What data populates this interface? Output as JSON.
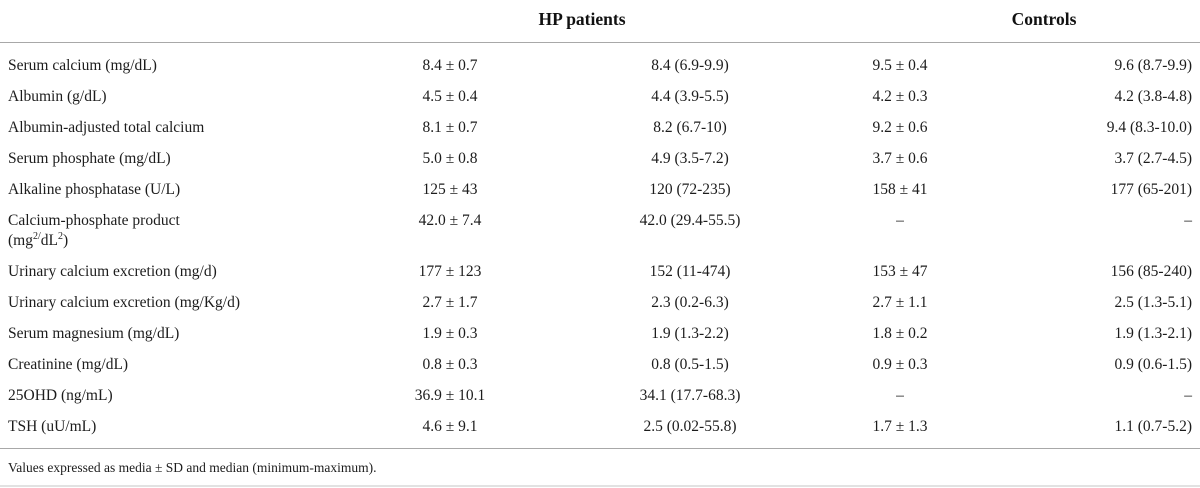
{
  "header": {
    "hp_label": "HP patients",
    "controls_label": "Controls"
  },
  "rows": [
    {
      "label": "Serum calcium (mg/dL)",
      "hp_mean": "8.4 ± 0.7",
      "hp_median": "8.4 (6.9-9.9)",
      "ctrl_mean": "9.5 ± 0.4",
      "ctrl_median": "9.6 (8.7-9.9)"
    },
    {
      "label": "Albumin (g/dL)",
      "hp_mean": "4.5 ± 0.4",
      "hp_median": "4.4 (3.9-5.5)",
      "ctrl_mean": "4.2 ± 0.3",
      "ctrl_median": "4.2 (3.8-4.8)"
    },
    {
      "label": "Albumin-adjusted total calcium",
      "hp_mean": "8.1 ± 0.7",
      "hp_median": "8.2 (6.7-10)",
      "ctrl_mean": "9.2 ± 0.6",
      "ctrl_median": "9.4 (8.3-10.0)"
    },
    {
      "label": "Serum phosphate (mg/dL)",
      "hp_mean": "5.0 ± 0.8",
      "hp_median": "4.9 (3.5-7.2)",
      "ctrl_mean": "3.7 ± 0.6",
      "ctrl_median": "3.7 (2.7-4.5)"
    },
    {
      "label": "Alkaline phosphatase (U/L)",
      "hp_mean": "125 ± 43",
      "hp_median": "120 (72-235)",
      "ctrl_mean": "158 ± 41",
      "ctrl_median": "177 (65-201)"
    },
    {
      "label": "Calcium-phosphate product",
      "unit": {
        "b1": "(mg",
        "s1": "2/",
        "b2": "dL",
        "s2": "2",
        "b3": ")"
      },
      "hp_mean": "42.0 ± 7.4",
      "hp_median": "42.0 (29.4-55.5)",
      "ctrl_mean": "–",
      "ctrl_median": "–"
    },
    {
      "label": "Urinary calcium excretion (mg/d)",
      "hp_mean": "177 ± 123",
      "hp_median": "152 (11-474)",
      "ctrl_mean": "153 ± 47",
      "ctrl_median": "156 (85-240)"
    },
    {
      "label": "Urinary calcium excretion (mg/Kg/d)",
      "hp_mean": "2.7 ± 1.7",
      "hp_median": "2.3 (0.2-6.3)",
      "ctrl_mean": "2.7 ± 1.1",
      "ctrl_median": "2.5 (1.3-5.1)"
    },
    {
      "label": "Serum magnesium (mg/dL)",
      "hp_mean": "1.9 ± 0.3",
      "hp_median": "1.9 (1.3-2.2)",
      "ctrl_mean": "1.8 ± 0.2",
      "ctrl_median": "1.9 (1.3-2.1)"
    },
    {
      "label": "Creatinine (mg/dL)",
      "hp_mean": "0.8 ± 0.3",
      "hp_median": "0.8 (0.5-1.5)",
      "ctrl_mean": "0.9 ± 0.3",
      "ctrl_median": "0.9 (0.6-1.5)"
    },
    {
      "label": "25OHD (ng/mL)",
      "hp_mean": "36.9 ± 10.1",
      "hp_median": "34.1 (17.7-68.3)",
      "ctrl_mean": "–",
      "ctrl_median": "–"
    },
    {
      "label": "TSH (uU/mL)",
      "hp_mean": "4.6 ± 9.1",
      "hp_median": "2.5 (0.02-55.8)",
      "ctrl_mean": "1.7 ± 1.3",
      "ctrl_median": "1.1 (0.7-5.2)"
    }
  ],
  "footnote": "Values expressed as media ± SD and median (minimum-maximum)."
}
